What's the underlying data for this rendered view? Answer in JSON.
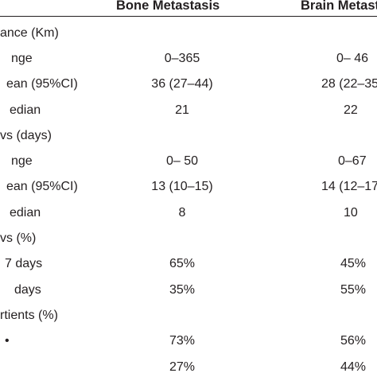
{
  "headers": {
    "bone": "Bone Metastasis",
    "brain": "Brain Metasta"
  },
  "rows": [
    {
      "label": "ance (Km)",
      "bone": "",
      "brain": ""
    },
    {
      "label": "nge",
      "bone": "0–365",
      "brain": "0– 46"
    },
    {
      "label": "ean (95%CI)",
      "bone": "36 (27–44)",
      "brain": "28 (22–35"
    },
    {
      "label": "edian",
      "bone": "21",
      "brain": "22"
    },
    {
      "label": "vs (days)",
      "bone": "",
      "brain": ""
    },
    {
      "label": "nge",
      "bone": "0– 50",
      "brain": "0–67"
    },
    {
      "label": "ean (95%CI)",
      "bone": "13 (10–15)",
      "brain": "14 (12–17"
    },
    {
      "label": "edian",
      "bone": "8",
      "brain": "10"
    },
    {
      "label": "vs (%)",
      "bone": "",
      "brain": ""
    },
    {
      "label": "7 days",
      "bone": "65%",
      "brain": "45%"
    },
    {
      "label": "days",
      "bone": "35%",
      "brain": "55%"
    },
    {
      "label": "rtients (%)",
      "bone": "",
      "brain": ""
    },
    {
      "label": "•",
      "bone": "73%",
      "brain": "56%"
    },
    {
      "label": "",
      "bone": "27%",
      "brain": "44%"
    }
  ]
}
